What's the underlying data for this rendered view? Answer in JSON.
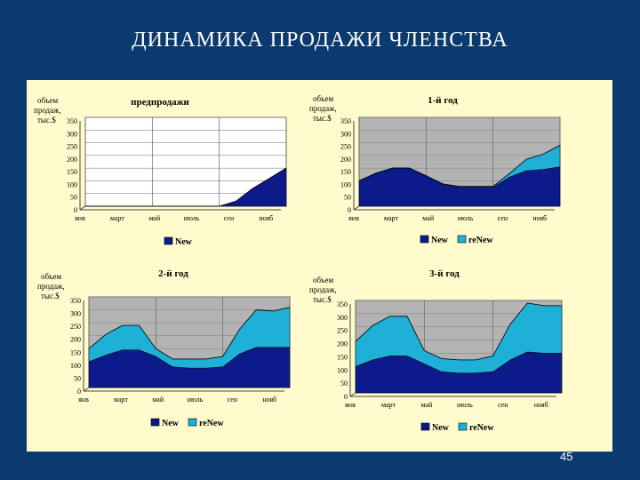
{
  "slide": {
    "title": "ДИНАМИКА ПРОДАЖИ ЧЛЕНСТВА",
    "page_number": "45"
  },
  "colors": {
    "background": "#0b3a6e",
    "panel": "#fffbcc",
    "new": "#0d1a8c",
    "renew": "#1fb0d8",
    "plot_bg": "#b3b3b3",
    "plot_bg_first": "#ffffff"
  },
  "chart_data": [
    {
      "type": "area",
      "title": "предпродажи",
      "ylabel": "объем продаж, тыс.$",
      "ylim": [
        0,
        350
      ],
      "yticks": [
        "350",
        "300",
        "250",
        "200",
        "150",
        "100",
        "50",
        "0"
      ],
      "xlabels": [
        "янв",
        "март",
        "май",
        "июль",
        "сен",
        "нояб"
      ],
      "grid": true,
      "legend_placement": "bottom",
      "series": [
        {
          "name": "New",
          "values": [
            0,
            0,
            0,
            0,
            0,
            0,
            0,
            0,
            0,
            20,
            70,
            110,
            150
          ]
        }
      ]
    },
    {
      "type": "area",
      "title": "1-й год",
      "ylabel": "объем продаж, тыс.$",
      "ylim": [
        0,
        350
      ],
      "yticks": [
        "350",
        "300",
        "250",
        "200",
        "150",
        "100",
        "50",
        "0"
      ],
      "xlabels": [
        "янв",
        "март",
        "май",
        "июль",
        "сен",
        "нояб"
      ],
      "grid": true,
      "legend_placement": "bottom",
      "series": [
        {
          "name": "New",
          "values": [
            100,
            130,
            150,
            150,
            120,
            85,
            75,
            75,
            75,
            115,
            140,
            145,
            155
          ]
        },
        {
          "name": "reNew",
          "values": [
            0,
            0,
            0,
            0,
            0,
            3,
            3,
            3,
            3,
            15,
            45,
            60,
            85
          ]
        }
      ]
    },
    {
      "type": "area",
      "title": "2-й год",
      "ylabel": "объем продаж, тыс.$",
      "ylim": [
        0,
        350
      ],
      "yticks": [
        "350",
        "300",
        "250",
        "200",
        "150",
        "100",
        "50",
        "0"
      ],
      "xlabels": [
        "янв",
        "март",
        "май",
        "июль",
        "сен",
        "нояб"
      ],
      "grid": true,
      "legend_placement": "bottom",
      "series": [
        {
          "name": "New",
          "values": [
            100,
            125,
            145,
            145,
            120,
            80,
            75,
            75,
            80,
            130,
            155,
            155,
            155
          ]
        },
        {
          "name": "reNew",
          "values": [
            50,
            80,
            95,
            95,
            30,
            30,
            35,
            35,
            40,
            95,
            145,
            140,
            155
          ]
        }
      ]
    },
    {
      "type": "area",
      "title": "3-й год",
      "ylabel": "объем продаж, тыс.$",
      "ylim": [
        0,
        350
      ],
      "yticks": [
        "350",
        "300",
        "250",
        "200",
        "150",
        "100",
        "50",
        "0"
      ],
      "xlabels": [
        "янв",
        "март",
        "май",
        "июль",
        "сен",
        "нояб"
      ],
      "grid": true,
      "legend_placement": "bottom",
      "series": [
        {
          "name": "New",
          "values": [
            100,
            125,
            140,
            140,
            110,
            80,
            75,
            75,
            80,
            125,
            155,
            150,
            150
          ]
        },
        {
          "name": "reNew",
          "values": [
            95,
            130,
            150,
            150,
            50,
            50,
            50,
            50,
            60,
            135,
            185,
            180,
            180
          ]
        }
      ]
    }
  ]
}
